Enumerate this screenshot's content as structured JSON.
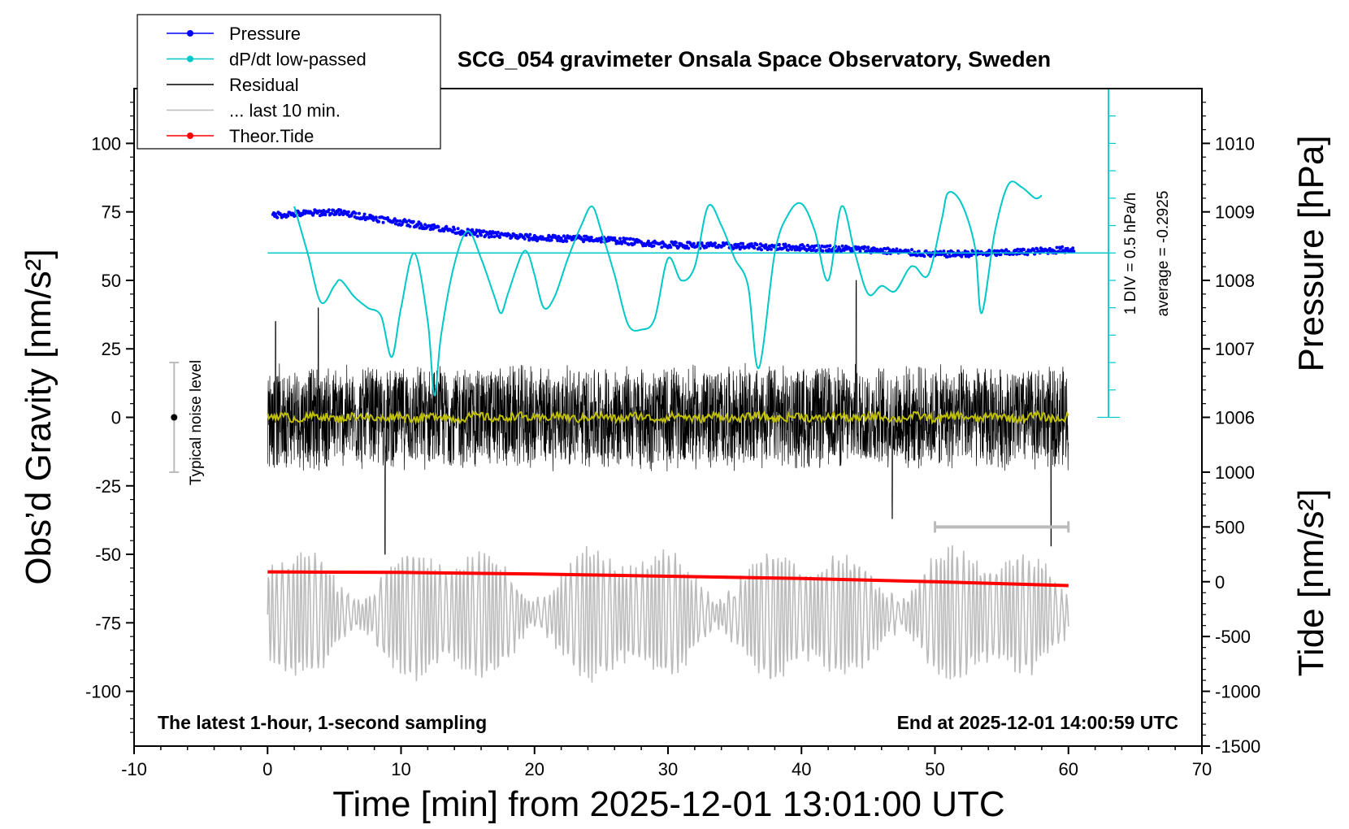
{
  "chart_data": {
    "type": "line",
    "title": "SCG_054 gravimeter Onsala Space Observatory, Sweden",
    "xlabel": "Time [min] from 2025-12-01 13:01:00 UTC",
    "ylabel_left": "Obs’d Gravity [nm/s²]",
    "ylabel_right_top": "Pressure [hPa]",
    "ylabel_right_bottom": "Tide [nm/s²]",
    "xlim": [
      -10,
      70
    ],
    "ylim_left": [
      -120,
      120
    ],
    "x_ticks": [
      -10,
      0,
      10,
      20,
      30,
      40,
      50,
      60,
      70
    ],
    "y_left_ticks": [
      100,
      75,
      50,
      25,
      0,
      -25,
      -50,
      -75,
      -100
    ],
    "pressure_ticks": [
      1010,
      1009,
      1008,
      1007,
      1006
    ],
    "pressure_axis_ref": {
      "hpa_at_gravity_100": 1010,
      "hpa_per_gravity_25": 1
    },
    "tide_ticks": [
      1000,
      500,
      0,
      -500,
      -1000,
      -1500
    ],
    "tide_axis_ref": {
      "tide_at_gravity_minus_120": -1500,
      "tide_per_gravity_20": 500
    },
    "footer_left": "The latest 1-hour, 1-second sampling",
    "footer_right": "End at 2025-12-01 14:00:59 UTC",
    "noise_label": "Typical noise level",
    "noise_bar_gravity_range": [
      -20,
      20
    ],
    "noise_bar_x": -7,
    "dpdt_scale": {
      "div_label": "1 DIV = 0.5 hPa/h",
      "average_label": "average = -0.2925",
      "zero_gravity": 60,
      "bottom_gravity": 0,
      "top_gravity": 120,
      "gravity_per_div": 10,
      "x": 63
    },
    "last10_bar": {
      "x_range": [
        50,
        60
      ],
      "gravity": -40
    },
    "legend": [
      {
        "label": "Pressure",
        "color": "#0000ff",
        "marker": true
      },
      {
        "label": "dP/dt low-passed",
        "color": "#00c8c8",
        "marker": true
      },
      {
        "label": "Residual",
        "color": "#000000",
        "marker": false
      },
      {
        "label": "... last 10 min.",
        "color": "#bbbbbb",
        "marker": false
      },
      {
        "label": "Theor.Tide",
        "color": "#ff0000",
        "marker": true
      }
    ],
    "series": [
      {
        "name": "Pressure",
        "color": "#0000ff",
        "unit": "hPa",
        "x": [
          0,
          5,
          10,
          15,
          20,
          25,
          30,
          35,
          40,
          45,
          50,
          55,
          60
        ],
        "values": [
          1008.95,
          1009.0,
          1008.85,
          1008.7,
          1008.62,
          1008.6,
          1008.52,
          1008.5,
          1008.48,
          1008.45,
          1008.38,
          1008.4,
          1008.45
        ]
      },
      {
        "name": "dP/dt low-passed",
        "color": "#00c8c8",
        "unit": "nm/s² plot scale",
        "x": [
          2,
          3,
          4,
          5,
          5.5,
          6.5,
          7.5,
          8.5,
          9.3,
          10,
          11,
          12,
          12.5,
          13,
          14,
          15,
          16,
          17,
          17.5,
          18,
          19,
          19.5,
          20,
          20.7,
          21.5,
          22.5,
          23.5,
          24.3,
          25,
          26,
          27,
          28,
          29,
          30,
          31,
          32,
          33,
          34,
          35,
          36,
          36.8,
          38,
          39,
          40,
          41,
          42,
          43,
          44,
          45,
          46,
          47,
          48,
          48.5,
          49.5,
          50.5,
          51,
          52,
          53,
          53.5,
          54.5,
          55.5,
          56.5,
          57.5,
          58
        ],
        "values": [
          77,
          60,
          42,
          48,
          50,
          44,
          40,
          37,
          22,
          40,
          60,
          35,
          8,
          30,
          56,
          68,
          58,
          44,
          38,
          45,
          59,
          60,
          52,
          40,
          44,
          58,
          70,
          77,
          68,
          52,
          34,
          32,
          36,
          58,
          50,
          55,
          77,
          70,
          58,
          48,
          18,
          60,
          74,
          78,
          68,
          50,
          77,
          60,
          45,
          48,
          46,
          54,
          55,
          52,
          72,
          82,
          78,
          62,
          38,
          68,
          85,
          84,
          80,
          81
        ]
      },
      {
        "name": "Residual",
        "color": "#000000",
        "unit": "nm/s²",
        "x_range": [
          0,
          60
        ],
        "typical_amplitude": 20,
        "spikes": [
          [
            8.8,
            -50
          ],
          [
            44.1,
            50
          ],
          [
            46.8,
            -37
          ],
          [
            58.7,
            -47
          ],
          [
            0.6,
            35
          ],
          [
            3.8,
            40
          ]
        ]
      },
      {
        "name": "Residual (smoothed)",
        "color": "#bfbf00",
        "unit": "nm/s²",
        "x_range": [
          0,
          60
        ],
        "values_approx": 0
      },
      {
        "name": "... last 10 min.",
        "color": "#bbbbbb",
        "unit": "nm/s²",
        "x_range": [
          0,
          60
        ],
        "center": -72,
        "typical_amplitude": 22
      },
      {
        "name": "Theor.Tide",
        "color": "#ff0000",
        "unit": "nm/s²",
        "x": [
          0,
          10,
          20,
          30,
          40,
          50,
          60
        ],
        "values": [
          90,
          85,
          70,
          50,
          30,
          0,
          -35
        ]
      }
    ]
  }
}
